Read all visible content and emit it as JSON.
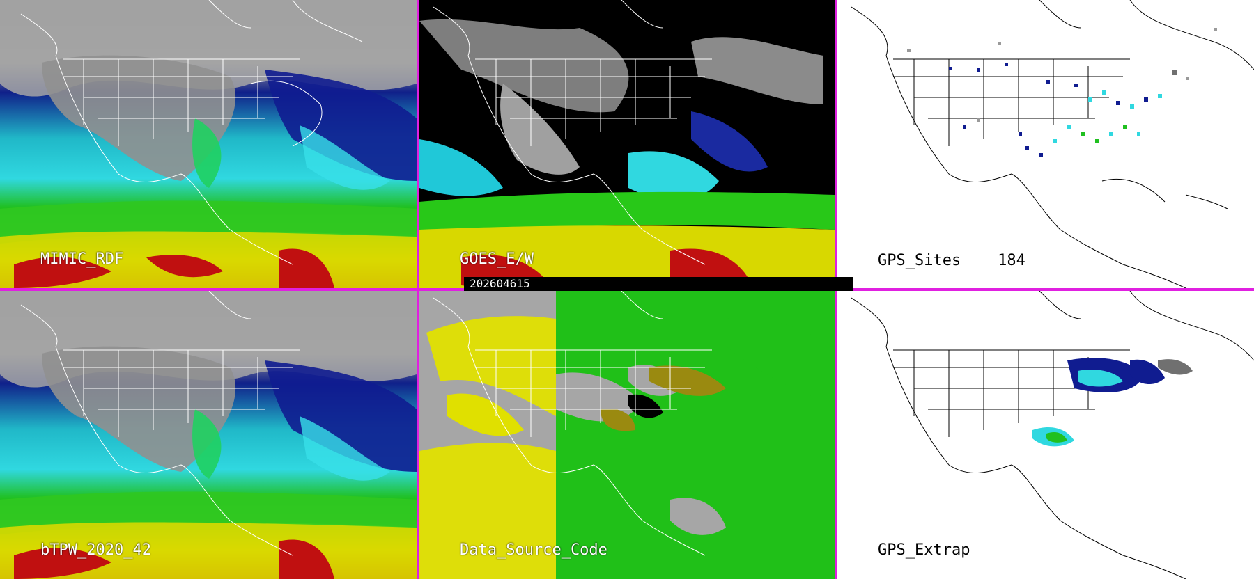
{
  "theme": {
    "separator_color": "#e020e0",
    "map_line_color_dark": "#ffffff",
    "map_line_color_light": "#000000"
  },
  "panels": [
    {
      "id": "mimic",
      "label": "MIMIC_RDF",
      "background": "satellite-moisture"
    },
    {
      "id": "goes",
      "label": "GOES_E/W",
      "background": "satellite-moisture-masked"
    },
    {
      "id": "gps-sites",
      "label": "GPS_Sites    184",
      "background": "white-basemap"
    },
    {
      "id": "btpw",
      "label": "bTPW_2020_42",
      "background": "satellite-moisture"
    },
    {
      "id": "data-source",
      "label": "Data_Source_Code",
      "background": "source-code"
    },
    {
      "id": "gps-extrap",
      "label": "GPS_Extrap",
      "background": "white-basemap"
    }
  ],
  "timestamp": "202604615"
}
